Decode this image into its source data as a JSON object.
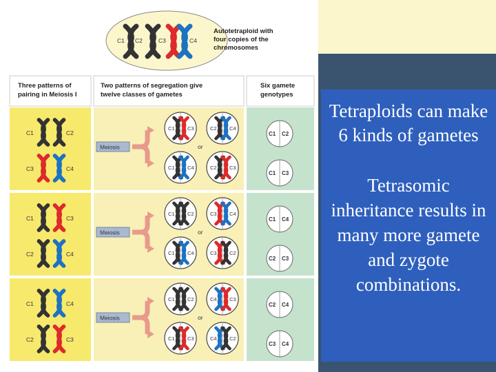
{
  "top": {
    "title_lines": [
      "Autotetraploid with",
      "four copies of the",
      "chromosomes"
    ],
    "chromosomes": [
      "C1",
      "C2",
      "C3",
      "C4"
    ]
  },
  "headers": {
    "pairing": [
      "Three patterns of",
      "pairing in Meiosis I"
    ],
    "segregation": [
      "Two patterns of segregation give",
      "twelve classes of gametes"
    ],
    "genotypes": [
      "Six gamete",
      "genotypes"
    ]
  },
  "meiosis_label": "Meiosis",
  "or_label": "or",
  "rows": [
    {
      "pairs": [
        [
          "C1",
          "C2"
        ],
        [
          "C3",
          "C4"
        ]
      ],
      "gametes": [
        [
          "C1",
          "C3"
        ],
        [
          "C2",
          "C4"
        ],
        [
          "C1",
          "C4"
        ],
        [
          "C2",
          "C3"
        ]
      ],
      "genotypes": [
        [
          "C1",
          "C2"
        ],
        [
          "C1",
          "C3"
        ]
      ]
    },
    {
      "pairs": [
        [
          "C1",
          "C3"
        ],
        [
          "C2",
          "C4"
        ]
      ],
      "gametes": [
        [
          "C1",
          "C2"
        ],
        [
          "C3",
          "C4"
        ],
        [
          "C1",
          "C4"
        ],
        [
          "C3",
          "C2"
        ]
      ],
      "genotypes": [
        [
          "C1",
          "C4"
        ],
        [
          "C2",
          "C3"
        ]
      ]
    },
    {
      "pairs": [
        [
          "C1",
          "C4"
        ],
        [
          "C2",
          "C3"
        ]
      ],
      "gametes": [
        [
          "C1",
          "C2"
        ],
        [
          "C4",
          "C3"
        ],
        [
          "C1",
          "C3"
        ],
        [
          "C4",
          "C2"
        ]
      ],
      "genotypes": [
        [
          "C2",
          "C4"
        ],
        [
          "C3",
          "C4"
        ]
      ]
    }
  ],
  "colors": {
    "C1": "#333333",
    "C2": "#333333",
    "C3": "#dd2a2a",
    "C4": "#1d72c2"
  },
  "sidebar": {
    "point1": "Tetraploids can make 6 kinds of gametes",
    "point2": "Tetrasomic inheritance results in many more gamete and zygote combinations."
  }
}
